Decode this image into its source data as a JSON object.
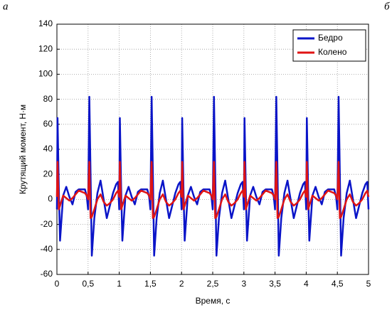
{
  "panel_labels": [
    "а",
    "б"
  ],
  "chart_data": {
    "type": "line",
    "xlabel": "Время, с",
    "ylabel": "Крутящий момент, Н·м",
    "x": [
      0,
      0.01,
      0.03,
      0.05,
      0.1,
      0.15,
      0.2,
      0.25,
      0.3,
      0.35,
      0.4,
      0.45,
      0.48,
      0.5,
      0.52,
      0.54,
      0.56,
      0.6,
      0.65,
      0.7,
      0.75,
      0.8,
      0.85,
      0.9,
      0.95,
      0.98,
      1,
      1.01,
      1.03,
      1.05,
      1.1,
      1.15,
      1.2,
      1.25,
      1.3,
      1.35,
      1.4,
      1.45,
      1.48,
      1.5,
      1.52,
      1.54,
      1.56,
      1.6,
      1.65,
      1.7,
      1.75,
      1.8,
      1.85,
      1.9,
      1.95,
      1.98,
      2,
      2.01,
      2.03,
      2.05,
      2.1,
      2.15,
      2.2,
      2.25,
      2.3,
      2.35,
      2.4,
      2.45,
      2.48,
      2.5,
      2.52,
      2.54,
      2.56,
      2.6,
      2.65,
      2.7,
      2.75,
      2.8,
      2.85,
      2.9,
      2.95,
      2.98,
      3,
      3.01,
      3.03,
      3.05,
      3.1,
      3.15,
      3.2,
      3.25,
      3.3,
      3.35,
      3.4,
      3.45,
      3.48,
      3.5,
      3.52,
      3.54,
      3.56,
      3.6,
      3.65,
      3.7,
      3.75,
      3.8,
      3.85,
      3.9,
      3.95,
      3.98,
      4,
      4.01,
      4.03,
      4.05,
      4.1,
      4.15,
      4.2,
      4.25,
      4.3,
      4.35,
      4.4,
      4.45,
      4.48,
      4.5,
      4.52,
      4.54,
      4.56,
      4.6,
      4.65,
      4.7,
      4.75,
      4.8,
      4.85,
      4.9,
      4.95,
      4.98,
      5
    ],
    "series": [
      {
        "name": "Бедро",
        "color": "#0a14c8",
        "values": [
          -8,
          65,
          10,
          -33,
          3,
          10,
          2,
          -4,
          6,
          8,
          8,
          8,
          2,
          -8,
          82,
          20,
          -45,
          -15,
          5,
          15,
          0,
          -15,
          -5,
          5,
          12,
          14,
          -8,
          65,
          10,
          -33,
          3,
          10,
          2,
          -4,
          6,
          8,
          8,
          8,
          2,
          -8,
          82,
          20,
          -45,
          -15,
          5,
          15,
          0,
          -15,
          -5,
          5,
          12,
          14,
          -8,
          65,
          10,
          -33,
          3,
          10,
          2,
          -4,
          6,
          8,
          8,
          8,
          2,
          -8,
          82,
          20,
          -45,
          -15,
          5,
          15,
          0,
          -15,
          -5,
          5,
          12,
          14,
          -8,
          65,
          10,
          -33,
          3,
          10,
          2,
          -4,
          6,
          8,
          8,
          8,
          2,
          -8,
          82,
          20,
          -45,
          -15,
          5,
          15,
          0,
          -15,
          -5,
          5,
          12,
          14,
          -8,
          65,
          10,
          -33,
          3,
          10,
          2,
          -4,
          6,
          8,
          8,
          8,
          2,
          -8,
          82,
          20,
          -45,
          -15,
          5,
          15,
          0,
          -15,
          -5,
          5,
          12,
          14,
          -8
        ]
      },
      {
        "name": "Колено",
        "color": "#e01414",
        "values": [
          2,
          30,
          -8,
          -5,
          3,
          1,
          -1,
          1,
          4,
          7,
          6,
          5,
          3,
          0,
          30,
          -15,
          -14,
          -8,
          0,
          4,
          -2,
          -5,
          -3,
          0,
          5,
          7,
          2,
          30,
          -8,
          -5,
          3,
          1,
          -1,
          1,
          4,
          7,
          6,
          5,
          3,
          0,
          30,
          -15,
          -14,
          -8,
          0,
          4,
          -2,
          -5,
          -3,
          0,
          5,
          7,
          2,
          30,
          -8,
          -5,
          3,
          1,
          -1,
          1,
          4,
          7,
          6,
          5,
          3,
          0,
          30,
          -15,
          -14,
          -8,
          0,
          4,
          -2,
          -5,
          -3,
          0,
          5,
          7,
          2,
          30,
          -8,
          -5,
          3,
          1,
          -1,
          1,
          4,
          7,
          6,
          5,
          3,
          0,
          30,
          -15,
          -14,
          -8,
          0,
          4,
          -2,
          -5,
          -3,
          0,
          5,
          7,
          2,
          30,
          -8,
          -5,
          3,
          1,
          -1,
          1,
          4,
          7,
          6,
          5,
          3,
          0,
          30,
          -15,
          -14,
          -8,
          0,
          4,
          -2,
          -5,
          -3,
          0,
          5,
          7,
          2
        ]
      }
    ],
    "xlim": [
      0,
      5
    ],
    "xticks": [
      0,
      {
        "value": 0.5,
        "label": "0,5"
      },
      1,
      {
        "value": 1.5,
        "label": "1,5"
      },
      2,
      {
        "value": 2.5,
        "label": "2,5"
      },
      3,
      {
        "value": 3.5,
        "label": "3,5"
      },
      4,
      {
        "value": 4.5,
        "label": "4,5"
      },
      5
    ],
    "ylim": [
      -60,
      140
    ],
    "yticks": [
      -60,
      -40,
      -20,
      0,
      20,
      40,
      60,
      80,
      100,
      120,
      140
    ],
    "grid": true,
    "legend": "upper right"
  }
}
